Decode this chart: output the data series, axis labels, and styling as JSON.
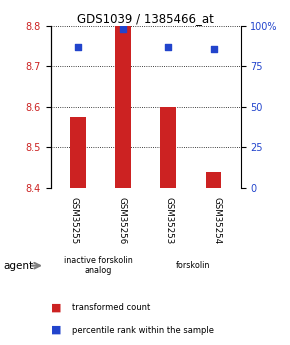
{
  "title": "GDS1039 / 1385466_at",
  "samples": [
    "GSM35255",
    "GSM35256",
    "GSM35253",
    "GSM35254"
  ],
  "bar_values": [
    8.575,
    8.8,
    8.6,
    8.44
  ],
  "percentile_values": [
    87,
    98,
    87,
    86
  ],
  "ylim_left": [
    8.4,
    8.8
  ],
  "ylim_right": [
    0,
    100
  ],
  "yticks_left": [
    8.4,
    8.5,
    8.6,
    8.7,
    8.8
  ],
  "yticks_right": [
    0,
    25,
    50,
    75,
    100
  ],
  "bar_color": "#cc2222",
  "dot_color": "#2244cc",
  "bar_width": 0.35,
  "agent_groups": [
    {
      "label": "inactive forskolin\nanalog",
      "span": [
        0,
        2
      ],
      "color": "#cceecc"
    },
    {
      "label": "forskolin",
      "span": [
        2,
        4
      ],
      "color": "#44bb44"
    }
  ],
  "legend_items": [
    {
      "color": "#cc2222",
      "label": "transformed count"
    },
    {
      "color": "#2244cc",
      "label": "percentile rank within the sample"
    }
  ],
  "agent_label": "agent",
  "background_color": "#ffffff",
  "tick_color_left": "#cc2222",
  "tick_color_right": "#2244cc",
  "sample_box_color": "#cccccc",
  "ytick_right_labels": [
    "0",
    "25",
    "50",
    "75",
    "100%"
  ]
}
